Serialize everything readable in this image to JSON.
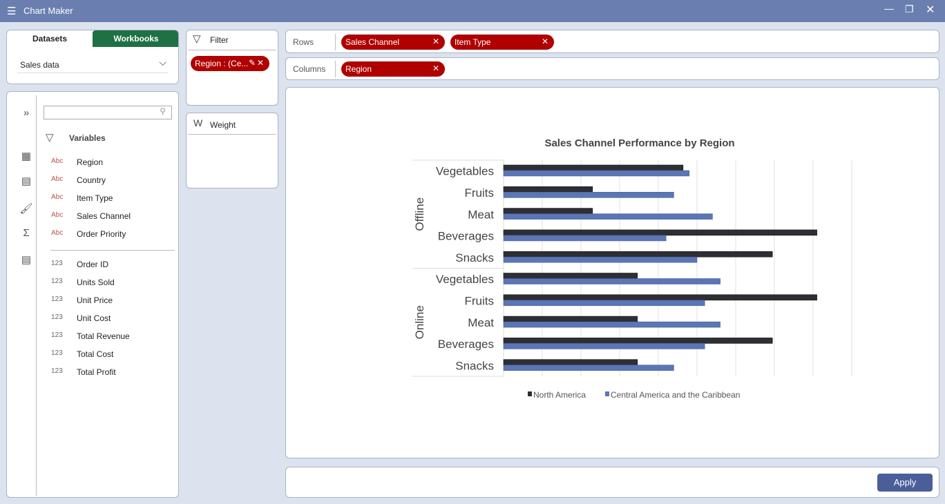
{
  "app": {
    "title": "Chart Maker"
  },
  "datasets_panel": {
    "tabs": [
      {
        "label": "Datasets"
      },
      {
        "label": "Workbooks"
      }
    ],
    "selected_dataset": "Sales data"
  },
  "variables_panel": {
    "heading": "Variables",
    "search_placeholder": "",
    "text_vars": [
      {
        "type": "Abc",
        "name": "Region"
      },
      {
        "type": "Abc",
        "name": "Country"
      },
      {
        "type": "Abc",
        "name": "Item Type"
      },
      {
        "type": "Abc",
        "name": "Sales Channel"
      },
      {
        "type": "Abc",
        "name": "Order Priority"
      }
    ],
    "num_vars": [
      {
        "type": "123",
        "name": "Order ID"
      },
      {
        "type": "123",
        "name": "Units Sold"
      },
      {
        "type": "123",
        "name": "Unit Price"
      },
      {
        "type": "123",
        "name": "Unit Cost"
      },
      {
        "type": "123",
        "name": "Total Revenue"
      },
      {
        "type": "123",
        "name": "Total Cost"
      },
      {
        "type": "123",
        "name": "Total Profit"
      }
    ]
  },
  "filter": {
    "label": "Filter",
    "chips": [
      "Region : (Ce..."
    ]
  },
  "weight": {
    "label": "Weight"
  },
  "rows": {
    "label": "Rows",
    "chips": [
      "Sales Channel",
      "Item Type"
    ]
  },
  "columns": {
    "label": "Columns",
    "chips": [
      "Region"
    ]
  },
  "apply_label": "Apply",
  "colors": {
    "accent": "#b00000",
    "titlebar": "#6a7fb0",
    "tab_active": "#1e7145",
    "apply": "#4a5f9a"
  },
  "chart_data": {
    "type": "bar",
    "orientation": "horizontal",
    "title": "Sales Channel Performance by Region",
    "groups": [
      {
        "name": "Offline",
        "categories": [
          "Vegetables",
          "Fruits",
          "Meat",
          "Beverages",
          "Snacks"
        ]
      },
      {
        "name": "Online",
        "categories": [
          "Vegetables",
          "Fruits",
          "Meat",
          "Beverages",
          "Snacks"
        ]
      }
    ],
    "series": [
      {
        "name": "North America",
        "color": "#2e2e35",
        "values": [
          4.64,
          2.3,
          2.3,
          8.1,
          6.95,
          3.46,
          8.1,
          3.46,
          6.95,
          3.46
        ]
      },
      {
        "name": "Central America and the Caribbean",
        "color": "#5b75b5",
        "values": [
          4.8,
          4.4,
          5.4,
          4.2,
          5.0,
          5.6,
          5.2,
          5.6,
          5.2,
          4.4
        ]
      }
    ],
    "xlim": [
      0,
      9
    ],
    "grid": true,
    "legend": "bottom",
    "xlabel": "",
    "ylabel": ""
  }
}
